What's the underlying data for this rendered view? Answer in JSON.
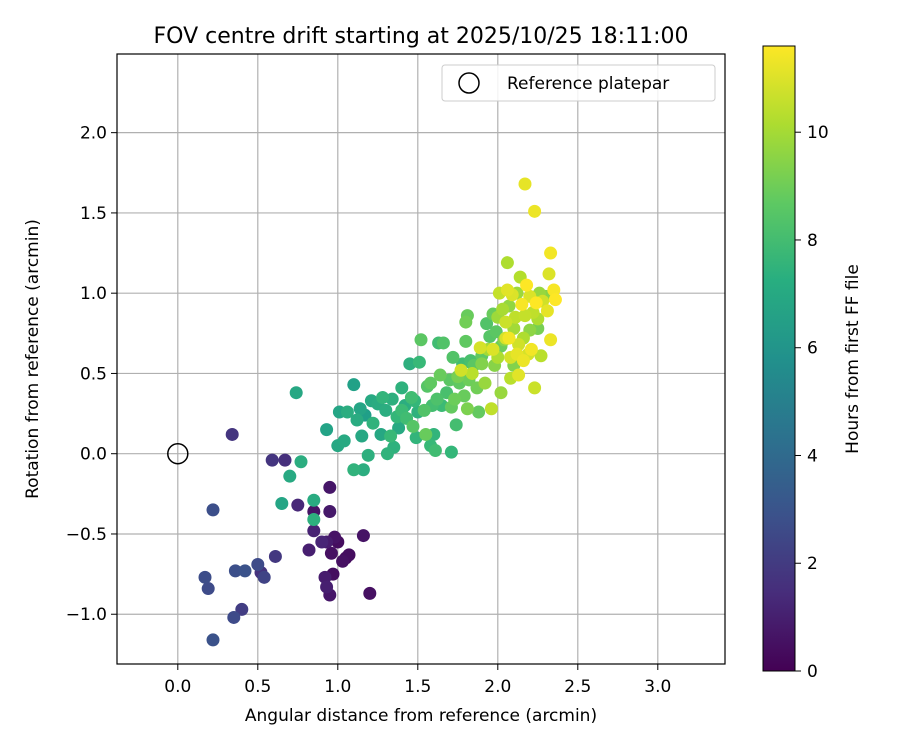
{
  "chart_data": {
    "type": "scatter",
    "title": "FOV centre drift starting at 2025/10/25 18:11:00",
    "xlabel": "Angular distance from reference (arcmin)",
    "ylabel": "Rotation from reference (arcmin)",
    "xlim": [
      -0.38,
      3.42
    ],
    "ylim": [
      -1.31,
      2.49
    ],
    "xticks": [
      "0.0",
      "0.5",
      "1.0",
      "1.5",
      "2.0",
      "2.5",
      "3.0"
    ],
    "xtick_values": [
      0,
      0.5,
      1.0,
      1.5,
      2.0,
      2.5,
      3.0
    ],
    "yticks": [
      "−1.0",
      "−0.5",
      "0.0",
      "0.5",
      "1.0",
      "1.5",
      "2.0"
    ],
    "ytick_values": [
      -1.0,
      -0.5,
      0,
      0.5,
      1.0,
      1.5,
      2.0
    ],
    "grid": true,
    "legend": {
      "placement": "top-right",
      "label": "Reference platepar"
    },
    "reference_point": {
      "x": 0.0,
      "y": 0.0
    },
    "colorbar": {
      "label": "Hours from first FF file",
      "colormap": "viridis",
      "range": [
        0,
        11.6
      ],
      "ticks": [
        "0",
        "2",
        "4",
        "6",
        "8",
        "10"
      ],
      "tick_values": [
        0,
        2,
        4,
        6,
        8,
        10
      ]
    },
    "points": [
      {
        "x": 0.34,
        "y": 0.12,
        "c": 1.8
      },
      {
        "x": 0.22,
        "y": -0.35,
        "c": 2.8
      },
      {
        "x": 0.17,
        "y": -0.77,
        "c": 2.7
      },
      {
        "x": 0.19,
        "y": -0.84,
        "c": 2.6
      },
      {
        "x": 0.22,
        "y": -1.16,
        "c": 2.9
      },
      {
        "x": 0.35,
        "y": -1.02,
        "c": 2.6
      },
      {
        "x": 0.36,
        "y": -0.73,
        "c": 2.8
      },
      {
        "x": 0.42,
        "y": -0.73,
        "c": 2.9
      },
      {
        "x": 0.4,
        "y": -0.97,
        "c": 2.1
      },
      {
        "x": 0.5,
        "y": -0.69,
        "c": 2.6
      },
      {
        "x": 0.52,
        "y": -0.74,
        "c": 1.7
      },
      {
        "x": 0.54,
        "y": -0.77,
        "c": 2.3
      },
      {
        "x": 0.61,
        "y": -0.64,
        "c": 1.9
      },
      {
        "x": 0.59,
        "y": -0.04,
        "c": 1.8
      },
      {
        "x": 0.67,
        "y": -0.04,
        "c": 1.6
      },
      {
        "x": 0.75,
        "y": -0.32,
        "c": 1.3
      },
      {
        "x": 0.82,
        "y": -0.6,
        "c": 1.0
      },
      {
        "x": 0.85,
        "y": -0.36,
        "c": 0.6
      },
      {
        "x": 0.85,
        "y": -0.48,
        "c": 1.1
      },
      {
        "x": 0.9,
        "y": -0.55,
        "c": 1.2
      },
      {
        "x": 0.92,
        "y": -0.77,
        "c": 0.9
      },
      {
        "x": 0.93,
        "y": -0.83,
        "c": 1.0
      },
      {
        "x": 0.95,
        "y": -0.88,
        "c": 0.7
      },
      {
        "x": 0.95,
        "y": -0.36,
        "c": 0.8
      },
      {
        "x": 0.95,
        "y": -0.21,
        "c": 0.7
      },
      {
        "x": 0.96,
        "y": -0.62,
        "c": 0.5
      },
      {
        "x": 0.97,
        "y": -0.75,
        "c": 0.4
      },
      {
        "x": 0.98,
        "y": -0.52,
        "c": 0.6
      },
      {
        "x": 1.0,
        "y": -0.55,
        "c": 0.4
      },
      {
        "x": 1.03,
        "y": -0.67,
        "c": 0.5
      },
      {
        "x": 1.05,
        "y": -0.65,
        "c": 0.3
      },
      {
        "x": 1.07,
        "y": -0.63,
        "c": 0.4
      },
      {
        "x": 1.16,
        "y": -0.51,
        "c": 0.6
      },
      {
        "x": 1.2,
        "y": -0.87,
        "c": 0.5
      },
      {
        "x": 0.93,
        "y": -0.55,
        "c": 0.9
      },
      {
        "x": 0.65,
        "y": -0.31,
        "c": 6.8
      },
      {
        "x": 0.7,
        "y": -0.14,
        "c": 7.0
      },
      {
        "x": 0.74,
        "y": 0.38,
        "c": 6.9
      },
      {
        "x": 0.77,
        "y": -0.05,
        "c": 7.2
      },
      {
        "x": 0.85,
        "y": -0.29,
        "c": 7.1
      },
      {
        "x": 0.85,
        "y": -0.41,
        "c": 7.3
      },
      {
        "x": 0.93,
        "y": 0.15,
        "c": 6.7
      },
      {
        "x": 1.0,
        "y": 0.05,
        "c": 6.9
      },
      {
        "x": 1.01,
        "y": 0.26,
        "c": 6.8
      },
      {
        "x": 1.04,
        "y": 0.08,
        "c": 7.0
      },
      {
        "x": 1.06,
        "y": 0.26,
        "c": 7.2
      },
      {
        "x": 1.1,
        "y": 0.43,
        "c": 6.6
      },
      {
        "x": 1.1,
        "y": -0.1,
        "c": 7.5
      },
      {
        "x": 1.12,
        "y": 0.21,
        "c": 7.1
      },
      {
        "x": 1.14,
        "y": 0.28,
        "c": 6.8
      },
      {
        "x": 1.15,
        "y": 0.11,
        "c": 6.9
      },
      {
        "x": 1.16,
        "y": -0.1,
        "c": 7.2
      },
      {
        "x": 1.17,
        "y": 0.24,
        "c": 6.5
      },
      {
        "x": 1.19,
        "y": -0.01,
        "c": 7.3
      },
      {
        "x": 1.21,
        "y": 0.33,
        "c": 7.0
      },
      {
        "x": 1.22,
        "y": 0.19,
        "c": 7.5
      },
      {
        "x": 1.25,
        "y": 0.31,
        "c": 7.1
      },
      {
        "x": 1.27,
        "y": 0.12,
        "c": 6.9
      },
      {
        "x": 1.28,
        "y": 0.35,
        "c": 7.6
      },
      {
        "x": 1.3,
        "y": 0.27,
        "c": 7.2
      },
      {
        "x": 1.31,
        "y": 0.0,
        "c": 7.5
      },
      {
        "x": 1.33,
        "y": 0.11,
        "c": 7.8
      },
      {
        "x": 1.34,
        "y": 0.34,
        "c": 7.3
      },
      {
        "x": 1.35,
        "y": 0.04,
        "c": 7.4
      },
      {
        "x": 1.37,
        "y": 0.23,
        "c": 7.7
      },
      {
        "x": 1.38,
        "y": 0.16,
        "c": 7.0
      },
      {
        "x": 1.4,
        "y": 0.41,
        "c": 7.4
      },
      {
        "x": 1.4,
        "y": 0.27,
        "c": 7.9
      },
      {
        "x": 1.42,
        "y": 0.3,
        "c": 7.2
      },
      {
        "x": 1.43,
        "y": 0.22,
        "c": 8.0
      },
      {
        "x": 1.45,
        "y": 0.56,
        "c": 7.3
      },
      {
        "x": 1.46,
        "y": 0.35,
        "c": 8.0
      },
      {
        "x": 1.47,
        "y": 0.17,
        "c": 8.5
      },
      {
        "x": 1.48,
        "y": 0.33,
        "c": 7.7
      },
      {
        "x": 1.49,
        "y": 0.1,
        "c": 7.6
      },
      {
        "x": 1.5,
        "y": 0.26,
        "c": 7.4
      },
      {
        "x": 1.51,
        "y": 0.57,
        "c": 7.8
      },
      {
        "x": 1.52,
        "y": 0.71,
        "c": 8.6
      },
      {
        "x": 1.54,
        "y": 0.27,
        "c": 8.4
      },
      {
        "x": 1.55,
        "y": 0.12,
        "c": 8.9
      },
      {
        "x": 1.56,
        "y": 0.42,
        "c": 8.5
      },
      {
        "x": 1.58,
        "y": 0.05,
        "c": 7.8
      },
      {
        "x": 1.58,
        "y": 0.44,
        "c": 8.7
      },
      {
        "x": 1.59,
        "y": 0.3,
        "c": 8.1
      },
      {
        "x": 1.6,
        "y": 0.12,
        "c": 7.6
      },
      {
        "x": 1.61,
        "y": 0.02,
        "c": 8.0
      },
      {
        "x": 1.62,
        "y": 0.34,
        "c": 8.3
      },
      {
        "x": 1.63,
        "y": 0.69,
        "c": 8.0
      },
      {
        "x": 1.64,
        "y": 0.49,
        "c": 8.9
      },
      {
        "x": 1.65,
        "y": 0.3,
        "c": 7.9
      },
      {
        "x": 1.66,
        "y": 0.69,
        "c": 8.4
      },
      {
        "x": 1.68,
        "y": 0.38,
        "c": 8.2
      },
      {
        "x": 1.7,
        "y": 0.46,
        "c": 8.6
      },
      {
        "x": 1.71,
        "y": 0.29,
        "c": 8.8
      },
      {
        "x": 1.71,
        "y": 0.01,
        "c": 7.7
      },
      {
        "x": 1.72,
        "y": 0.6,
        "c": 8.4
      },
      {
        "x": 1.73,
        "y": 0.34,
        "c": 9.0
      },
      {
        "x": 1.74,
        "y": 0.18,
        "c": 8.1
      },
      {
        "x": 1.75,
        "y": 0.48,
        "c": 9.2
      },
      {
        "x": 1.76,
        "y": 0.44,
        "c": 8.7
      },
      {
        "x": 1.77,
        "y": 0.52,
        "c": 10.8
      },
      {
        "x": 1.78,
        "y": 0.56,
        "c": 8.0
      },
      {
        "x": 1.79,
        "y": 0.36,
        "c": 8.9
      },
      {
        "x": 1.8,
        "y": 0.7,
        "c": 8.7
      },
      {
        "x": 1.8,
        "y": 0.82,
        "c": 9.1
      },
      {
        "x": 1.81,
        "y": 0.86,
        "c": 8.9
      },
      {
        "x": 1.81,
        "y": 0.28,
        "c": 9.3
      },
      {
        "x": 1.82,
        "y": 0.46,
        "c": 9.0
      },
      {
        "x": 1.83,
        "y": 0.58,
        "c": 8.2
      },
      {
        "x": 1.84,
        "y": 0.5,
        "c": 10.4
      },
      {
        "x": 1.85,
        "y": 0.55,
        "c": 8.6
      },
      {
        "x": 1.87,
        "y": 0.41,
        "c": 9.1
      },
      {
        "x": 1.88,
        "y": 0.26,
        "c": 8.8
      },
      {
        "x": 1.89,
        "y": 0.66,
        "c": 10.9
      },
      {
        "x": 1.9,
        "y": 0.56,
        "c": 9.4
      },
      {
        "x": 1.9,
        "y": 0.61,
        "c": 8.7
      },
      {
        "x": 1.92,
        "y": 0.44,
        "c": 9.8
      },
      {
        "x": 1.93,
        "y": 0.81,
        "c": 8.4
      },
      {
        "x": 1.94,
        "y": 0.65,
        "c": 10.0
      },
      {
        "x": 1.95,
        "y": 0.73,
        "c": 8.5
      },
      {
        "x": 1.96,
        "y": 0.28,
        "c": 10.5
      },
      {
        "x": 1.97,
        "y": 0.87,
        "c": 8.9
      },
      {
        "x": 1.98,
        "y": 0.55,
        "c": 9.5
      },
      {
        "x": 1.99,
        "y": 0.76,
        "c": 8.6
      },
      {
        "x": 2.0,
        "y": 0.85,
        "c": 9.9
      },
      {
        "x": 2.0,
        "y": 0.6,
        "c": 10.2
      },
      {
        "x": 2.01,
        "y": 1.0,
        "c": 10.6
      },
      {
        "x": 2.02,
        "y": 0.67,
        "c": 9.0
      },
      {
        "x": 2.02,
        "y": 0.38,
        "c": 9.8
      },
      {
        "x": 2.03,
        "y": 0.9,
        "c": 10.1
      },
      {
        "x": 2.04,
        "y": 0.71,
        "c": 9.5
      },
      {
        "x": 2.05,
        "y": 0.82,
        "c": 10.7
      },
      {
        "x": 2.06,
        "y": 1.02,
        "c": 11.1
      },
      {
        "x": 2.06,
        "y": 1.19,
        "c": 10.2
      },
      {
        "x": 2.07,
        "y": 0.72,
        "c": 11.4
      },
      {
        "x": 2.07,
        "y": 0.92,
        "c": 9.7
      },
      {
        "x": 2.08,
        "y": 0.6,
        "c": 10.9
      },
      {
        "x": 2.08,
        "y": 0.47,
        "c": 10.4
      },
      {
        "x": 2.09,
        "y": 0.99,
        "c": 11.0
      },
      {
        "x": 2.1,
        "y": 0.78,
        "c": 10.0
      },
      {
        "x": 2.1,
        "y": 0.55,
        "c": 9.4
      },
      {
        "x": 2.11,
        "y": 0.85,
        "c": 10.5
      },
      {
        "x": 2.12,
        "y": 1.0,
        "c": 9.9
      },
      {
        "x": 2.13,
        "y": 0.68,
        "c": 10.8
      },
      {
        "x": 2.13,
        "y": 0.49,
        "c": 11.1
      },
      {
        "x": 2.14,
        "y": 1.1,
        "c": 10.3
      },
      {
        "x": 2.15,
        "y": 0.93,
        "c": 11.5
      },
      {
        "x": 2.16,
        "y": 0.72,
        "c": 10.2
      },
      {
        "x": 2.16,
        "y": 0.58,
        "c": 11.3
      },
      {
        "x": 2.17,
        "y": 1.68,
        "c": 11.2
      },
      {
        "x": 2.17,
        "y": 0.86,
        "c": 10.6
      },
      {
        "x": 2.18,
        "y": 1.05,
        "c": 11.6
      },
      {
        "x": 2.19,
        "y": 0.62,
        "c": 10.9
      },
      {
        "x": 2.2,
        "y": 0.98,
        "c": 11.0
      },
      {
        "x": 2.2,
        "y": 0.77,
        "c": 9.6
      },
      {
        "x": 2.21,
        "y": 0.65,
        "c": 11.4
      },
      {
        "x": 2.22,
        "y": 0.88,
        "c": 10.5
      },
      {
        "x": 2.23,
        "y": 1.51,
        "c": 11.3
      },
      {
        "x": 2.23,
        "y": 0.41,
        "c": 10.7
      },
      {
        "x": 2.24,
        "y": 0.94,
        "c": 11.6
      },
      {
        "x": 2.25,
        "y": 0.78,
        "c": 9.2
      },
      {
        "x": 2.25,
        "y": 0.84,
        "c": 10.2
      },
      {
        "x": 2.26,
        "y": 1.0,
        "c": 9.8
      },
      {
        "x": 2.27,
        "y": 0.61,
        "c": 10.4
      },
      {
        "x": 2.28,
        "y": 0.95,
        "c": 10.8
      },
      {
        "x": 2.3,
        "y": 0.98,
        "c": 9.5
      },
      {
        "x": 2.31,
        "y": 0.89,
        "c": 11.2
      },
      {
        "x": 2.32,
        "y": 1.12,
        "c": 11.0
      },
      {
        "x": 2.33,
        "y": 1.25,
        "c": 11.4
      },
      {
        "x": 2.33,
        "y": 0.71,
        "c": 11.3
      },
      {
        "x": 2.35,
        "y": 1.02,
        "c": 11.5
      },
      {
        "x": 2.36,
        "y": 0.96,
        "c": 11.6
      },
      {
        "x": 2.05,
        "y": 0.72,
        "c": 10.9
      },
      {
        "x": 1.97,
        "y": 0.65,
        "c": 11.0
      },
      {
        "x": 2.12,
        "y": 0.62,
        "c": 11.2
      }
    ]
  }
}
